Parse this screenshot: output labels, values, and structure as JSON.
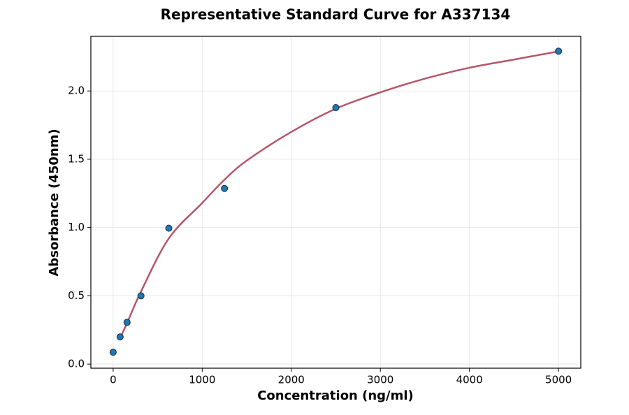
{
  "chart_data": {
    "type": "scatter",
    "title": "Representative Standard Curve for A337134",
    "x_label": "Concentration (ng/ml)",
    "y_label": "Absorbance (450nm)",
    "xlim": [
      -250,
      5250
    ],
    "ylim": [
      -0.03,
      2.4
    ],
    "xticks": [
      0,
      1000,
      2000,
      3000,
      4000,
      5000
    ],
    "yticks": [
      {
        "value": 0,
        "label": "0.0"
      },
      {
        "value": 0.5,
        "label": "0.5"
      },
      {
        "value": 1,
        "label": "1.0"
      },
      {
        "value": 1.5,
        "label": "1.5"
      },
      {
        "value": 2,
        "label": "2.0"
      }
    ],
    "grid": true,
    "series": [
      {
        "type": "scatter",
        "color": "#1f77b4",
        "x": [
          0,
          78.125,
          156.25,
          312.5,
          625,
          1250,
          2500,
          5000
        ],
        "values": [
          0.087,
          0.199,
          0.306,
          0.5,
          0.995,
          1.286,
          1.878,
          2.291
        ]
      },
      {
        "type": "line",
        "color": "#b5566a",
        "x": [
          78,
          156,
          312,
          625,
          1000,
          1250,
          1500,
          2000,
          2500,
          3000,
          3500,
          4000,
          4500,
          5000
        ],
        "values": [
          0.19,
          0.3,
          0.53,
          0.92,
          1.18,
          1.35,
          1.49,
          1.7,
          1.87,
          1.99,
          2.09,
          2.17,
          2.23,
          2.29
        ]
      }
    ]
  }
}
